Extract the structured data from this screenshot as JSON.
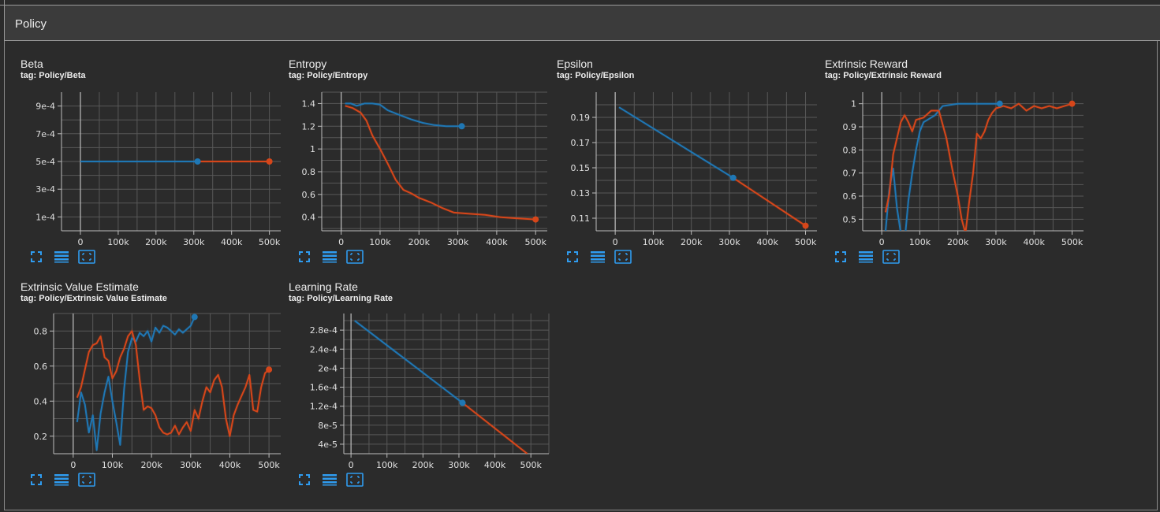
{
  "section": {
    "title": "Policy"
  },
  "colors": {
    "blue": "#1f77b4",
    "orange": "#d6461a",
    "grid": "#585858",
    "axis": "#bdbdbd",
    "background": "#2b2b2b"
  },
  "icons": {
    "fit": "fit-domain-icon",
    "log": "toggle-data-table-icon",
    "expand": "expand-chart-icon"
  },
  "charts": [
    {
      "title": "Beta",
      "tag": "tag: Policy/Beta",
      "chart_data": {
        "type": "line",
        "xlabel": "",
        "ylabel": "",
        "xlim": [
          -50000,
          530000
        ],
        "ylim": [
          0,
          0.001
        ],
        "xticks": [
          0,
          100000,
          200000,
          300000,
          400000,
          500000
        ],
        "xtick_labels": [
          "0",
          "100k",
          "200k",
          "300k",
          "400k",
          "500k"
        ],
        "yticks": [
          0.0001,
          0.0003,
          0.0005,
          0.0007,
          0.0009
        ],
        "ytick_labels": [
          "1e-4",
          "3e-4",
          "5e-4",
          "7e-4",
          "9e-4"
        ],
        "series": [
          {
            "name": "run-blue",
            "color": "blue",
            "x": [
              0,
              310000
            ],
            "y": [
              0.0005,
              0.0005
            ],
            "marker": true
          },
          {
            "name": "run-orange",
            "color": "orange",
            "x": [
              310000,
              500000
            ],
            "y": [
              0.0005,
              0.0005
            ],
            "marker": true
          }
        ]
      }
    },
    {
      "title": "Entropy",
      "tag": "tag: Policy/Entropy",
      "chart_data": {
        "type": "line",
        "xlabel": "",
        "ylabel": "",
        "xlim": [
          -50000,
          530000
        ],
        "ylim": [
          0.28,
          1.5
        ],
        "xticks": [
          0,
          100000,
          200000,
          300000,
          400000,
          500000
        ],
        "xtick_labels": [
          "0",
          "100k",
          "200k",
          "300k",
          "400k",
          "500k"
        ],
        "yticks": [
          0.4,
          0.6,
          0.8,
          1.0,
          1.2,
          1.4
        ],
        "ytick_labels": [
          "0.4",
          "0.6",
          "0.8",
          "1",
          "1.2",
          "1.4"
        ],
        "series": [
          {
            "name": "run-blue",
            "color": "blue",
            "x": [
              10000,
              25000,
              40000,
              60000,
              80000,
              100000,
              120000,
              150000,
              180000,
              210000,
              240000,
              270000,
              310000
            ],
            "y": [
              1.4,
              1.4,
              1.38,
              1.4,
              1.4,
              1.39,
              1.34,
              1.3,
              1.26,
              1.23,
              1.21,
              1.2,
              1.2
            ],
            "marker": true
          },
          {
            "name": "run-orange",
            "color": "orange",
            "x": [
              10000,
              30000,
              50000,
              65000,
              80000,
              100000,
              120000,
              140000,
              160000,
              180000,
              200000,
              230000,
              260000,
              290000,
              330000,
              370000,
              410000,
              450000,
              500000
            ],
            "y": [
              1.38,
              1.36,
              1.32,
              1.25,
              1.12,
              1.0,
              0.87,
              0.73,
              0.64,
              0.61,
              0.57,
              0.53,
              0.48,
              0.44,
              0.43,
              0.42,
              0.4,
              0.39,
              0.38
            ],
            "marker": true
          }
        ]
      }
    },
    {
      "title": "Epsilon",
      "tag": "tag: Policy/Epsilon",
      "chart_data": {
        "type": "line",
        "xlabel": "",
        "ylabel": "",
        "xlim": [
          -50000,
          530000
        ],
        "ylim": [
          0.1,
          0.21
        ],
        "xticks": [
          0,
          100000,
          200000,
          300000,
          400000,
          500000
        ],
        "xtick_labels": [
          "0",
          "100k",
          "200k",
          "300k",
          "400k",
          "500k"
        ],
        "yticks": [
          0.11,
          0.13,
          0.15,
          0.17,
          0.19
        ],
        "ytick_labels": [
          "0.11",
          "0.13",
          "0.15",
          "0.17",
          "0.19"
        ],
        "series": [
          {
            "name": "run-blue",
            "color": "blue",
            "x": [
              10000,
              310000
            ],
            "y": [
              0.198,
              0.142
            ],
            "marker": true
          },
          {
            "name": "run-orange",
            "color": "orange",
            "x": [
              310000,
              500000
            ],
            "y": [
              0.142,
              0.104
            ],
            "marker": true
          }
        ]
      }
    },
    {
      "title": "Extrinsic Reward",
      "tag": "tag: Policy/Extrinsic Reward",
      "chart_data": {
        "type": "line",
        "xlabel": "",
        "ylabel": "",
        "xlim": [
          -50000,
          530000
        ],
        "ylim": [
          0.45,
          1.05
        ],
        "xticks": [
          0,
          100000,
          200000,
          300000,
          400000,
          500000
        ],
        "xtick_labels": [
          "0",
          "100k",
          "200k",
          "300k",
          "400k",
          "500k"
        ],
        "yticks": [
          0.5,
          0.6,
          0.7,
          0.8,
          0.9,
          1.0
        ],
        "ytick_labels": [
          "0.5",
          "0.6",
          "0.7",
          "0.8",
          "0.9",
          "1"
        ],
        "series": [
          {
            "name": "run-blue",
            "color": "blue",
            "x": [
              10000,
              20000,
              30000,
              40000,
              50000,
              60000,
              70000,
              80000,
              90000,
              100000,
              110000,
              120000,
              140000,
              160000,
              200000,
              250000,
              310000
            ],
            "y": [
              0.45,
              0.63,
              0.72,
              0.55,
              0.44,
              0.4,
              0.58,
              0.7,
              0.8,
              0.88,
              0.92,
              0.93,
              0.95,
              0.99,
              1.0,
              1.0,
              1.0
            ],
            "marker": true
          },
          {
            "name": "run-orange",
            "color": "orange",
            "x": [
              10000,
              20000,
              30000,
              40000,
              50000,
              60000,
              70000,
              80000,
              90000,
              110000,
              130000,
              150000,
              170000,
              185000,
              200000,
              210000,
              220000,
              230000,
              240000,
              250000,
              260000,
              270000,
              280000,
              290000,
              300000,
              320000,
              340000,
              360000,
              380000,
              400000,
              420000,
              440000,
              460000,
              480000,
              500000
            ],
            "y": [
              0.53,
              0.61,
              0.78,
              0.85,
              0.92,
              0.95,
              0.92,
              0.88,
              0.93,
              0.94,
              0.97,
              0.97,
              0.85,
              0.72,
              0.6,
              0.5,
              0.44,
              0.58,
              0.7,
              0.87,
              0.85,
              0.88,
              0.93,
              0.96,
              0.98,
              0.99,
              0.98,
              1.0,
              0.97,
              0.99,
              0.98,
              0.99,
              0.98,
              0.99,
              1.0
            ],
            "marker": true
          }
        ]
      }
    },
    {
      "title": "Extrinsic Value Estimate",
      "tag": "tag: Policy/Extrinsic Value Estimate",
      "chart_data": {
        "type": "line",
        "xlabel": "",
        "ylabel": "",
        "xlim": [
          -50000,
          530000
        ],
        "ylim": [
          0.1,
          0.9
        ],
        "xticks": [
          0,
          100000,
          200000,
          300000,
          400000,
          500000
        ],
        "xtick_labels": [
          "0",
          "100k",
          "200k",
          "300k",
          "400k",
          "500k"
        ],
        "yticks": [
          0.2,
          0.4,
          0.6,
          0.8
        ],
        "ytick_labels": [
          "0.2",
          "0.4",
          "0.6",
          "0.8"
        ],
        "series": [
          {
            "name": "run-blue",
            "color": "blue",
            "x": [
              10000,
              20000,
              30000,
              40000,
              50000,
              60000,
              70000,
              80000,
              90000,
              100000,
              110000,
              120000,
              130000,
              140000,
              150000,
              160000,
              170000,
              180000,
              190000,
              200000,
              210000,
              220000,
              230000,
              240000,
              250000,
              260000,
              270000,
              280000,
              290000,
              300000,
              310000
            ],
            "y": [
              0.28,
              0.45,
              0.38,
              0.22,
              0.32,
              0.12,
              0.33,
              0.45,
              0.54,
              0.4,
              0.28,
              0.15,
              0.47,
              0.68,
              0.76,
              0.74,
              0.79,
              0.77,
              0.8,
              0.74,
              0.82,
              0.79,
              0.83,
              0.82,
              0.8,
              0.78,
              0.81,
              0.79,
              0.81,
              0.83,
              0.88
            ],
            "marker": true
          },
          {
            "name": "run-orange",
            "color": "orange",
            "x": [
              10000,
              20000,
              30000,
              40000,
              50000,
              60000,
              70000,
              80000,
              90000,
              100000,
              110000,
              120000,
              130000,
              140000,
              150000,
              160000,
              170000,
              180000,
              190000,
              200000,
              210000,
              220000,
              230000,
              240000,
              250000,
              260000,
              270000,
              280000,
              290000,
              300000,
              310000,
              320000,
              330000,
              340000,
              350000,
              360000,
              370000,
              380000,
              390000,
              400000,
              410000,
              420000,
              430000,
              440000,
              450000,
              460000,
              470000,
              480000,
              490000,
              500000
            ],
            "y": [
              0.42,
              0.48,
              0.58,
              0.68,
              0.72,
              0.73,
              0.77,
              0.65,
              0.63,
              0.53,
              0.57,
              0.65,
              0.7,
              0.77,
              0.8,
              0.72,
              0.52,
              0.35,
              0.37,
              0.36,
              0.32,
              0.25,
              0.22,
              0.21,
              0.22,
              0.26,
              0.21,
              0.25,
              0.28,
              0.23,
              0.35,
              0.3,
              0.4,
              0.48,
              0.45,
              0.52,
              0.55,
              0.48,
              0.3,
              0.2,
              0.32,
              0.38,
              0.43,
              0.48,
              0.55,
              0.35,
              0.34,
              0.48,
              0.56,
              0.58
            ],
            "marker": true
          }
        ]
      }
    },
    {
      "title": "Learning Rate",
      "tag": "tag: Policy/Learning Rate",
      "chart_data": {
        "type": "line",
        "xlabel": "",
        "ylabel": "",
        "xlim": [
          -20000,
          550000
        ],
        "ylim": [
          2e-05,
          0.000315
        ],
        "xticks": [
          0,
          100000,
          200000,
          300000,
          400000,
          500000
        ],
        "xtick_labels": [
          "0",
          "100k",
          "200k",
          "300k",
          "400k",
          "500k"
        ],
        "yticks": [
          4e-05,
          8e-05,
          0.00012,
          0.00016,
          0.0002,
          0.00024,
          0.00028
        ],
        "ytick_labels": [
          "4e-5",
          "8e-5",
          "1.2e-4",
          "1.6e-4",
          "2e-4",
          "2.4e-4",
          "2.8e-4"
        ],
        "series": [
          {
            "name": "run-blue",
            "color": "blue",
            "x": [
              10000,
              310000
            ],
            "y": [
              0.0003,
              0.000127
            ],
            "marker": true
          },
          {
            "name": "run-orange",
            "color": "orange",
            "x": [
              310000,
              490000
            ],
            "y": [
              0.000127,
              2e-05
            ],
            "marker": false
          }
        ]
      }
    }
  ]
}
